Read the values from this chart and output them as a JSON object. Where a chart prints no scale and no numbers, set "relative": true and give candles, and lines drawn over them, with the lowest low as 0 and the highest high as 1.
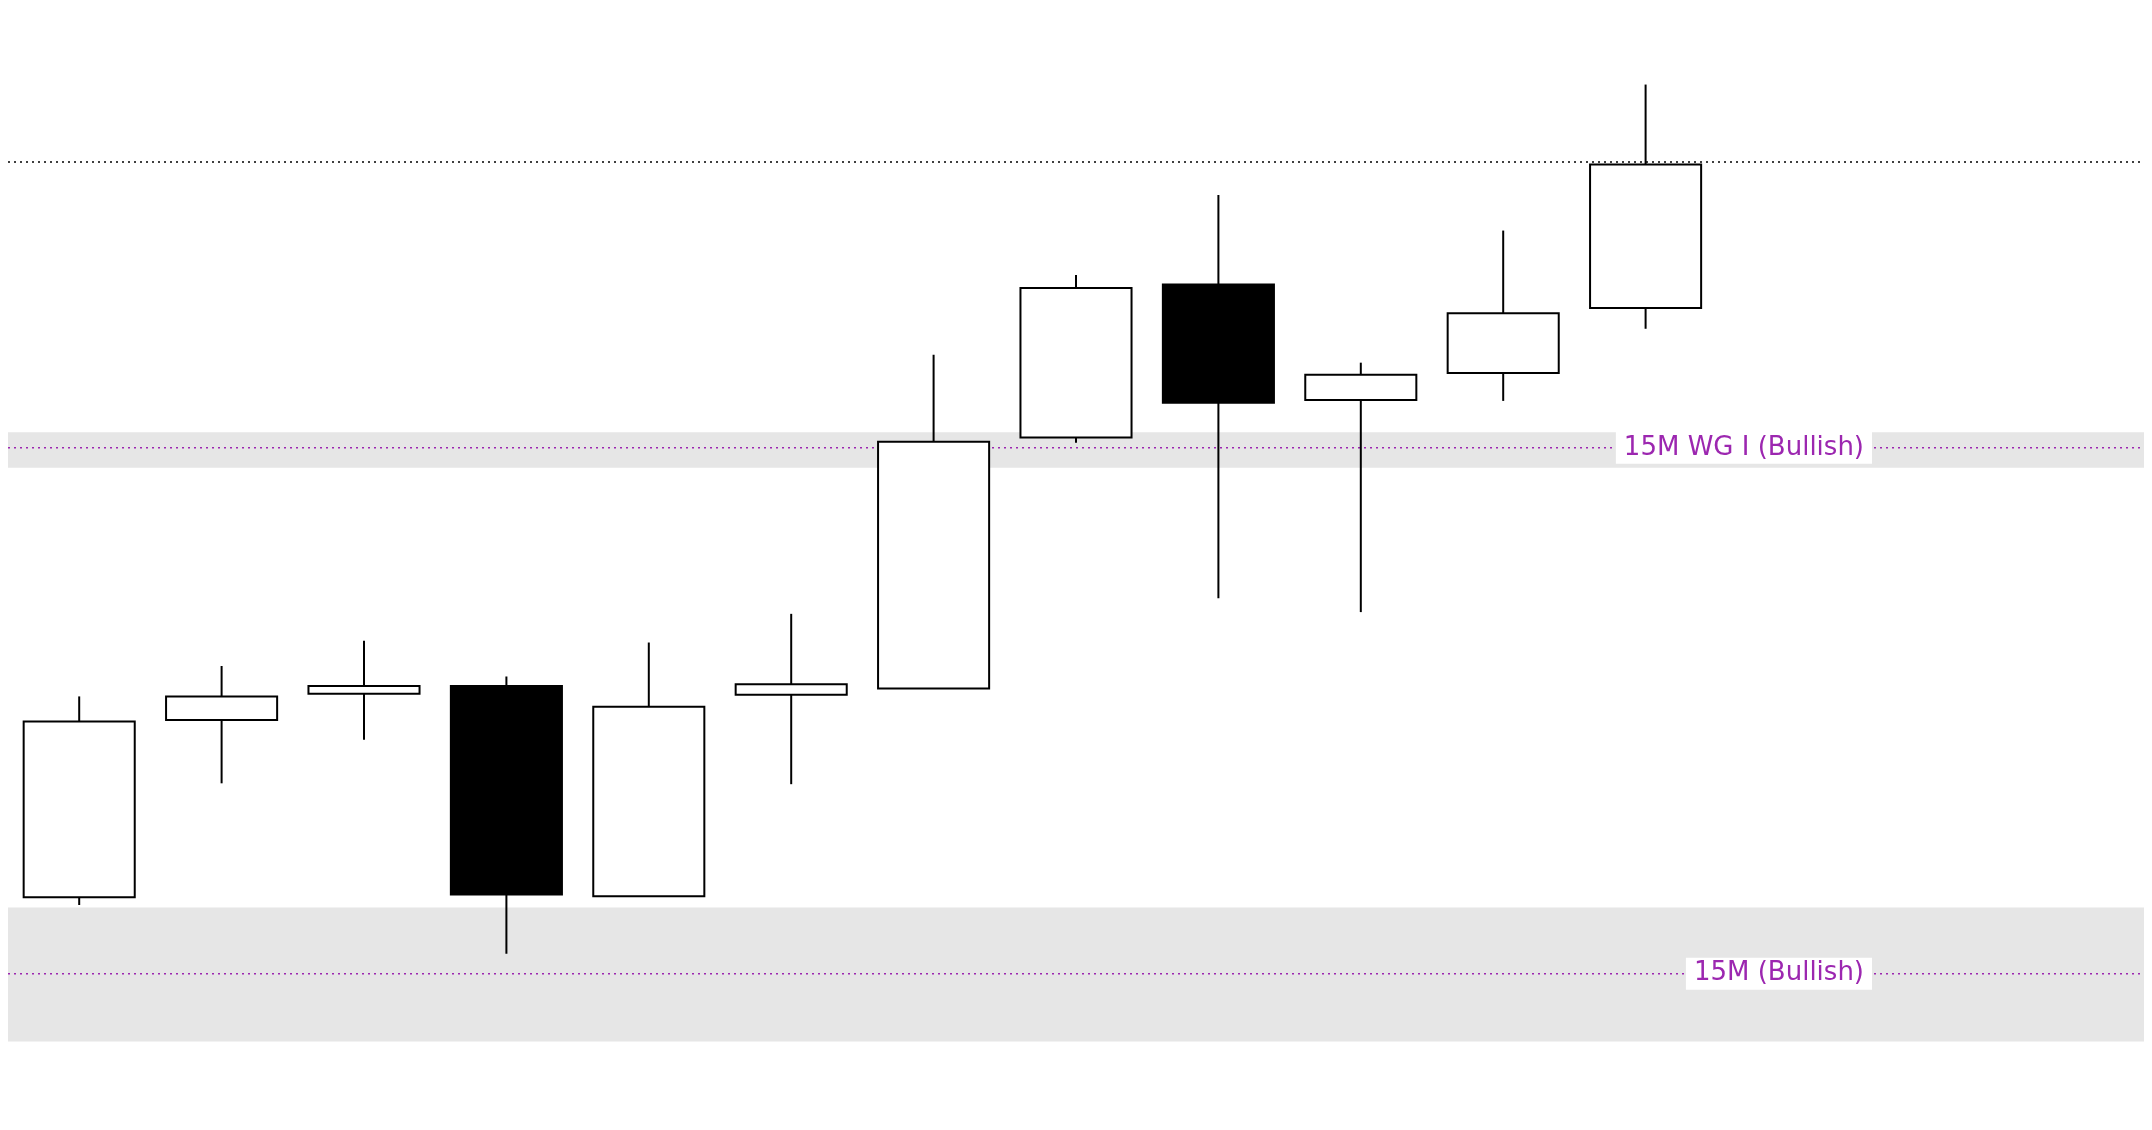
{
  "chart_data": {
    "type": "candlestick",
    "relative": true,
    "categories": [
      null,
      null,
      null,
      null,
      null,
      null,
      null,
      null,
      null,
      null,
      null,
      null,
      null,
      null,
      null
    ],
    "ohlc": [
      [
        0.065,
        0.296,
        0.056,
        0.267
      ],
      [
        0.269,
        0.331,
        0.196,
        0.296
      ],
      [
        0.299,
        0.36,
        0.246,
        0.308
      ],
      [
        0.308,
        0.319,
        0,
        0.068
      ],
      [
        0.066,
        0.358,
        0.066,
        0.284
      ],
      [
        0.298,
        0.391,
        0.195,
        0.31
      ],
      [
        0.305,
        0.689,
        0.305,
        0.589
      ],
      [
        0.594,
        0.781,
        0.588,
        0.766
      ],
      [
        0.77,
        0.873,
        0.409,
        0.634
      ],
      [
        0.637,
        0.68,
        0.393,
        0.666
      ],
      [
        0.668,
        0.832,
        0.636,
        0.737
      ],
      [
        0.743,
        1,
        0.719,
        0.908
      ],
      null,
      null,
      null
    ],
    "colors": [
      "#ffffff",
      "#ffffff",
      "#ffffff",
      "#000000",
      "#ffffff",
      "#ffffff",
      "#ffffff",
      "#ffffff",
      "#000000",
      "#ffffff",
      "#ffffff",
      "#ffffff",
      null,
      null,
      null
    ],
    "bands": [
      {
        "axis": "y",
        "from": 0.559,
        "to": 0.6,
        "color": "#e6e6e6"
      },
      {
        "axis": "y",
        "from": -0.101,
        "to": 0.053,
        "color": "#e6e6e6"
      }
    ],
    "ref_lines": [
      {
        "axis": "y",
        "value": 0.911,
        "color": "#000000",
        "line_style": "dotted"
      },
      {
        "axis": "y",
        "value": 0.582,
        "label": "15M WG I (Bullish)",
        "color": "#9c27b0",
        "line_style": "dotted"
      },
      {
        "axis": "y",
        "value": -0.023,
        "label": "15M (Bullish)",
        "color": "#9c27b0",
        "line_style": "dotted"
      }
    ],
    "legend": false
  }
}
